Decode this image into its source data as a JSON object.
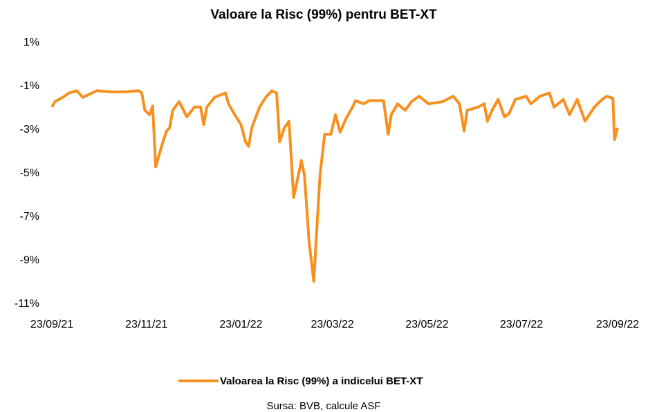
{
  "chart_data": {
    "type": "line",
    "title": "Valoare la Risc (99%) pentru BET-XT",
    "x": [
      "2021-09-23",
      "2021-09-25",
      "2021-09-30",
      "2021-10-04",
      "2021-10-09",
      "2021-10-13",
      "2021-10-22",
      "2021-10-31",
      "2021-11-09",
      "2021-11-18",
      "2021-11-20",
      "2021-11-22",
      "2021-11-25",
      "2021-11-27",
      "2021-11-29",
      "2021-12-03",
      "2021-12-06",
      "2021-12-08",
      "2021-12-10",
      "2021-12-14",
      "2021-12-17",
      "2021-12-19",
      "2021-12-24",
      "2021-12-28",
      "2021-12-30",
      "2022-01-01",
      "2022-01-06",
      "2022-01-13",
      "2022-01-15",
      "2022-01-19",
      "2022-01-23",
      "2022-01-26",
      "2022-01-28",
      "2022-01-30",
      "2022-02-04",
      "2022-02-08",
      "2022-02-12",
      "2022-02-15",
      "2022-02-17",
      "2022-02-20",
      "2022-02-23",
      "2022-02-26",
      "2022-03-01",
      "2022-03-03",
      "2022-03-05",
      "2022-03-08",
      "2022-03-11",
      "2022-03-13",
      "2022-03-15",
      "2022-03-18",
      "2022-03-22",
      "2022-03-25",
      "2022-03-28",
      "2022-04-01",
      "2022-04-05",
      "2022-04-07",
      "2022-04-12",
      "2022-04-16",
      "2022-04-21",
      "2022-04-25",
      "2022-04-28",
      "2022-04-30",
      "2022-05-04",
      "2022-05-09",
      "2022-05-13",
      "2022-05-18",
      "2022-05-24",
      "2022-06-02",
      "2022-06-09",
      "2022-06-13",
      "2022-06-16",
      "2022-06-18",
      "2022-06-25",
      "2022-06-29",
      "2022-07-01",
      "2022-07-04",
      "2022-07-08",
      "2022-07-12",
      "2022-07-15",
      "2022-07-19",
      "2022-07-26",
      "2022-07-29",
      "2022-08-04",
      "2022-08-10",
      "2022-08-13",
      "2022-08-19",
      "2022-08-23",
      "2022-08-28",
      "2022-09-02",
      "2022-09-08",
      "2022-09-13",
      "2022-09-16",
      "2022-09-20",
      "2022-09-21",
      "2022-09-23"
    ],
    "series": [
      {
        "name": "Valoarea la Risc (99%) a indicelui BET-XT",
        "color": "#f7901e",
        "values": [
          -1.95,
          -1.7,
          -1.5,
          -1.3,
          -1.2,
          -1.5,
          -1.2,
          -1.25,
          -1.25,
          -1.2,
          -1.3,
          -2.1,
          -2.3,
          -1.9,
          -4.7,
          -3.7,
          -3.05,
          -2.9,
          -2.1,
          -1.7,
          -2.1,
          -2.4,
          -1.95,
          -1.95,
          -2.75,
          -1.95,
          -1.5,
          -1.3,
          -1.8,
          -2.3,
          -2.75,
          -3.55,
          -3.75,
          -2.9,
          -1.95,
          -1.5,
          -1.2,
          -1.3,
          -3.55,
          -2.9,
          -2.6,
          -6.1,
          -5.1,
          -4.4,
          -5.1,
          -8.15,
          -9.95,
          -7.5,
          -5.1,
          -3.2,
          -3.2,
          -2.3,
          -3.1,
          -2.45,
          -1.95,
          -1.65,
          -1.8,
          -1.65,
          -1.65,
          -1.65,
          -3.2,
          -2.3,
          -1.8,
          -2.1,
          -1.7,
          -1.45,
          -1.8,
          -1.7,
          -1.45,
          -1.8,
          -3.05,
          -2.1,
          -1.95,
          -1.8,
          -2.6,
          -2.1,
          -1.6,
          -2.4,
          -2.25,
          -1.6,
          -1.45,
          -1.8,
          -1.45,
          -1.3,
          -1.95,
          -1.6,
          -2.3,
          -1.6,
          -2.6,
          -1.95,
          -1.6,
          -1.45,
          -1.55,
          -3.45,
          -2.9
        ]
      }
    ],
    "xlim": [
      "2021-09-23",
      "2022-09-23"
    ],
    "xticks": [
      {
        "value": "2021-09-23",
        "label": "23/09/21"
      },
      {
        "value": "2021-11-23",
        "label": "23/11/21"
      },
      {
        "value": "2022-01-23",
        "label": "23/01/22"
      },
      {
        "value": "2022-03-23",
        "label": "23/03/22"
      },
      {
        "value": "2022-05-23",
        "label": "23/05/22"
      },
      {
        "value": "2022-07-23",
        "label": "23/07/22"
      },
      {
        "value": "2022-09-23",
        "label": "23/09/22"
      }
    ],
    "ylim": [
      -11,
      1
    ],
    "yticks": [
      {
        "value": 1,
        "label": "1%"
      },
      {
        "value": -1,
        "label": "-1%"
      },
      {
        "value": -3,
        "label": "-3%"
      },
      {
        "value": -5,
        "label": "-5%"
      },
      {
        "value": -7,
        "label": "-7%"
      },
      {
        "value": -9,
        "label": "-9%"
      },
      {
        "value": -11,
        "label": "-11%"
      }
    ],
    "grid": false,
    "legend": "bottom",
    "source": "Sursa: BVB, calcule ASF"
  }
}
